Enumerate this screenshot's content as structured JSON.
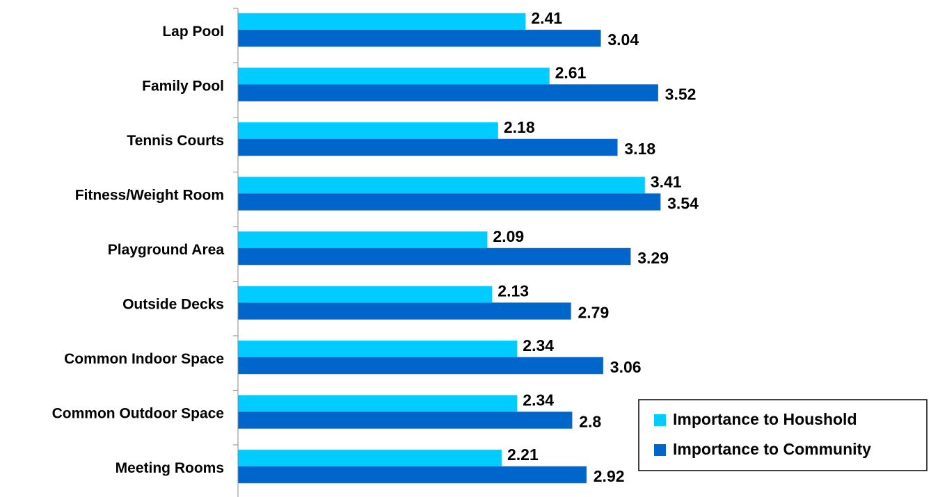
{
  "chart_data": {
    "type": "bar",
    "orientation": "horizontal",
    "categories": [
      "Lap Pool",
      "Family Pool",
      "Tennis Courts",
      "Fitness/Weight Room",
      "Playground Area",
      "Outside Decks",
      "Common Indoor Space",
      "Common Outdoor Space",
      "Meeting Rooms"
    ],
    "series": [
      {
        "name": "Importance to Houshold",
        "color": "#00CCFF",
        "values": [
          2.41,
          2.61,
          2.18,
          3.41,
          2.09,
          2.13,
          2.34,
          2.34,
          2.21
        ],
        "labels": [
          "2.41",
          "2.61",
          "2.18",
          "3.41",
          "2.09",
          "2.13",
          "2.34",
          "2.34",
          "2.21"
        ]
      },
      {
        "name": "Importance to Community",
        "color": "#0066CC",
        "values": [
          3.04,
          3.52,
          3.18,
          3.54,
          3.29,
          2.79,
          3.06,
          2.8,
          2.92
        ],
        "labels": [
          "3.04",
          "3.52",
          "3.18",
          "3.54",
          "3.29",
          "2.79",
          "3.06",
          "2.8",
          "2.92"
        ]
      }
    ],
    "xlim": [
      0,
      4
    ],
    "legend_position": "bottom-right",
    "grid": false
  }
}
